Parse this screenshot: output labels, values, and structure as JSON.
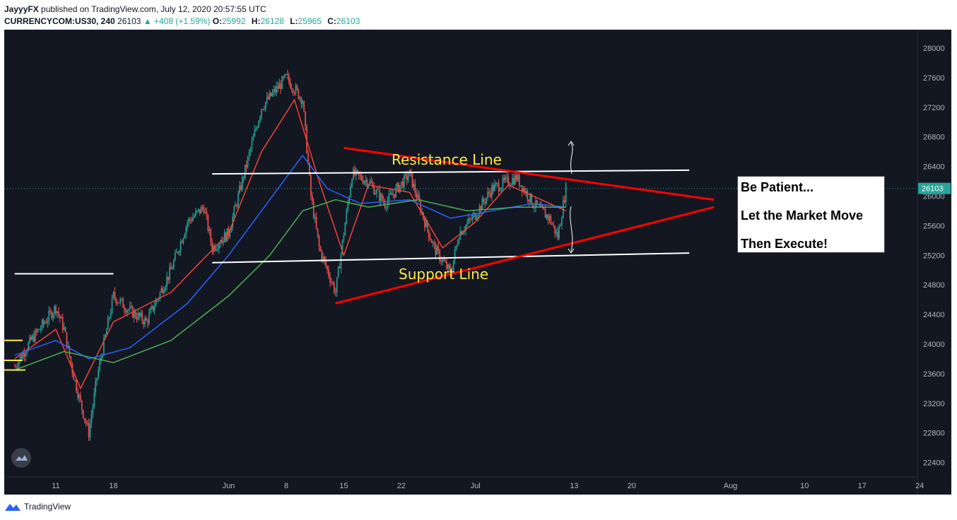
{
  "header": {
    "author": "JayyyFX",
    "published_text": "published on TradingView.com, July 12, 2020 20:57:55 UTC",
    "symbol_label": "CURRENCYCOM:US30, 240",
    "last_price": "26103",
    "change": "+408 (+1.59%)",
    "ohlc": [
      {
        "key": "O:",
        "value": "25992"
      },
      {
        "key": "H:",
        "value": "26128"
      },
      {
        "key": "L:",
        "value": "25965"
      },
      {
        "key": "C:",
        "value": "26103"
      }
    ]
  },
  "footer": {
    "brand": "TradingView"
  },
  "note": {
    "lines": [
      "Be Patient...",
      "Let the Market Move",
      "Then Execute!"
    ]
  },
  "annotations": {
    "resistance_label": "Resistance Line",
    "support_label": "Support Line"
  },
  "colors": {
    "background": "#131722",
    "candle_up": "#26a69a",
    "candle_down": "#ef5350",
    "ema_fast": "#f44336",
    "ema_mid": "#2962ff",
    "ema_slow": "#4caf50",
    "triangle": "#ff0000",
    "horizontal_lines": "#ffffff",
    "label_text": "#ffeb3b",
    "price_tag": "#26a69a"
  },
  "chart_data": {
    "type": "candlestick",
    "title": "",
    "y_axis": {
      "range": [
        22300,
        28100
      ],
      "ticks": [
        22400,
        22800,
        23200,
        23600,
        24000,
        24400,
        24800,
        25200,
        25600,
        26000,
        26400,
        26800,
        27200,
        27600,
        28000
      ],
      "last_price_tag": "26103"
    },
    "x_axis": {
      "tick_labels": [
        {
          "label": "11",
          "date": "2020-05-11"
        },
        {
          "label": "18",
          "date": "2020-05-18"
        },
        {
          "label": "Jun",
          "date": "2020-06-01"
        },
        {
          "label": "8",
          "date": "2020-06-08"
        },
        {
          "label": "15",
          "date": "2020-06-15"
        },
        {
          "label": "22",
          "date": "2020-06-22"
        },
        {
          "label": "Jul",
          "date": "2020-07-01"
        },
        {
          "label": "13",
          "date": "2020-07-13"
        },
        {
          "label": "20",
          "date": "2020-07-20"
        },
        {
          "label": "Aug",
          "date": "2020-08-01"
        },
        {
          "label": "10",
          "date": "2020-08-10"
        },
        {
          "label": "17",
          "date": "2020-08-17"
        },
        {
          "label": "24",
          "date": "2020-08-24"
        }
      ]
    },
    "price_path": [
      {
        "date": "2020-05-06",
        "close": 23700
      },
      {
        "date": "2020-05-08",
        "close": 24050
      },
      {
        "date": "2020-05-11",
        "close": 24500
      },
      {
        "date": "2020-05-12",
        "close": 24200
      },
      {
        "date": "2020-05-13",
        "close": 23650
      },
      {
        "date": "2020-05-14",
        "close": 23200
      },
      {
        "date": "2020-05-15",
        "close": 22800
      },
      {
        "date": "2020-05-16",
        "close": 23550
      },
      {
        "date": "2020-05-18",
        "close": 24650
      },
      {
        "date": "2020-05-20",
        "close": 24450
      },
      {
        "date": "2020-05-22",
        "close": 24300
      },
      {
        "date": "2020-05-25",
        "close": 25000
      },
      {
        "date": "2020-05-27",
        "close": 25650
      },
      {
        "date": "2020-05-29",
        "close": 25850
      },
      {
        "date": "2020-05-30",
        "close": 25300
      },
      {
        "date": "2020-06-01",
        "close": 25500
      },
      {
        "date": "2020-06-03",
        "close": 26350
      },
      {
        "date": "2020-06-05",
        "close": 27200
      },
      {
        "date": "2020-06-08",
        "close": 27600
      },
      {
        "date": "2020-06-10",
        "close": 27300
      },
      {
        "date": "2020-06-11",
        "close": 26000
      },
      {
        "date": "2020-06-12",
        "close": 25300
      },
      {
        "date": "2020-06-14",
        "close": 24700
      },
      {
        "date": "2020-06-16",
        "close": 26300
      },
      {
        "date": "2020-06-18",
        "close": 26200
      },
      {
        "date": "2020-06-20",
        "close": 25900
      },
      {
        "date": "2020-06-23",
        "close": 26300
      },
      {
        "date": "2020-06-25",
        "close": 25600
      },
      {
        "date": "2020-06-26",
        "close": 25300
      },
      {
        "date": "2020-06-28",
        "close": 24950
      },
      {
        "date": "2020-06-29",
        "close": 25500
      },
      {
        "date": "2020-07-01",
        "close": 25750
      },
      {
        "date": "2020-07-03",
        "close": 26100
      },
      {
        "date": "2020-07-06",
        "close": 26250
      },
      {
        "date": "2020-07-08",
        "close": 25900
      },
      {
        "date": "2020-07-10",
        "close": 25700
      },
      {
        "date": "2020-07-11",
        "close": 25450
      },
      {
        "date": "2020-07-12",
        "close": 26103
      }
    ],
    "moving_averages": [
      {
        "color_key": "ema_fast",
        "points": [
          {
            "date": "2020-05-06",
            "value": 23800
          },
          {
            "date": "2020-05-11",
            "value": 24200
          },
          {
            "date": "2020-05-14",
            "value": 23400
          },
          {
            "date": "2020-05-18",
            "value": 24300
          },
          {
            "date": "2020-05-25",
            "value": 24700
          },
          {
            "date": "2020-06-01",
            "value": 25500
          },
          {
            "date": "2020-06-05",
            "value": 26600
          },
          {
            "date": "2020-06-09",
            "value": 27300
          },
          {
            "date": "2020-06-12",
            "value": 26200
          },
          {
            "date": "2020-06-15",
            "value": 25200
          },
          {
            "date": "2020-06-18",
            "value": 26150
          },
          {
            "date": "2020-06-23",
            "value": 26050
          },
          {
            "date": "2020-06-27",
            "value": 25300
          },
          {
            "date": "2020-07-01",
            "value": 25650
          },
          {
            "date": "2020-07-05",
            "value": 26150
          },
          {
            "date": "2020-07-09",
            "value": 25950
          },
          {
            "date": "2020-07-12",
            "value": 25800
          }
        ]
      },
      {
        "color_key": "ema_mid",
        "points": [
          {
            "date": "2020-05-06",
            "value": 23850
          },
          {
            "date": "2020-05-11",
            "value": 24050
          },
          {
            "date": "2020-05-15",
            "value": 23800
          },
          {
            "date": "2020-05-20",
            "value": 23950
          },
          {
            "date": "2020-05-27",
            "value": 24550
          },
          {
            "date": "2020-06-01",
            "value": 25200
          },
          {
            "date": "2020-06-05",
            "value": 25800
          },
          {
            "date": "2020-06-10",
            "value": 26550
          },
          {
            "date": "2020-06-13",
            "value": 26100
          },
          {
            "date": "2020-06-17",
            "value": 25900
          },
          {
            "date": "2020-06-23",
            "value": 25950
          },
          {
            "date": "2020-06-28",
            "value": 25700
          },
          {
            "date": "2020-07-03",
            "value": 25800
          },
          {
            "date": "2020-07-08",
            "value": 25900
          },
          {
            "date": "2020-07-12",
            "value": 25850
          }
        ]
      },
      {
        "color_key": "ema_slow",
        "points": [
          {
            "date": "2020-05-06",
            "value": 23650
          },
          {
            "date": "2020-05-12",
            "value": 23900
          },
          {
            "date": "2020-05-18",
            "value": 23750
          },
          {
            "date": "2020-05-25",
            "value": 24050
          },
          {
            "date": "2020-06-01",
            "value": 24650
          },
          {
            "date": "2020-06-06",
            "value": 25200
          },
          {
            "date": "2020-06-10",
            "value": 25800
          },
          {
            "date": "2020-06-14",
            "value": 25950
          },
          {
            "date": "2020-06-18",
            "value": 25850
          },
          {
            "date": "2020-06-24",
            "value": 25950
          },
          {
            "date": "2020-06-30",
            "value": 25800
          },
          {
            "date": "2020-07-06",
            "value": 25850
          },
          {
            "date": "2020-07-12",
            "value": 25850
          }
        ]
      }
    ],
    "drawings": {
      "resistance_line": {
        "start": {
          "date": "2020-05-30",
          "price": 26300
        },
        "end": {
          "date": "2020-07-27",
          "price": 26350
        }
      },
      "support_line": {
        "start": {
          "date": "2020-05-30",
          "price": 25100
        },
        "end": {
          "date": "2020-07-27",
          "price": 25230
        }
      },
      "early_level_line": {
        "start": {
          "date": "2020-05-06",
          "price": 24950
        },
        "end": {
          "date": "2020-05-18",
          "price": 24950
        }
      },
      "triangle_upper": {
        "start": {
          "date": "2020-06-15",
          "price": 26650
        },
        "end": {
          "date": "2020-07-30",
          "price": 25950
        }
      },
      "triangle_lower": {
        "start": {
          "date": "2020-06-14",
          "price": 24550
        },
        "end": {
          "date": "2020-07-30",
          "price": 25850
        }
      }
    }
  }
}
